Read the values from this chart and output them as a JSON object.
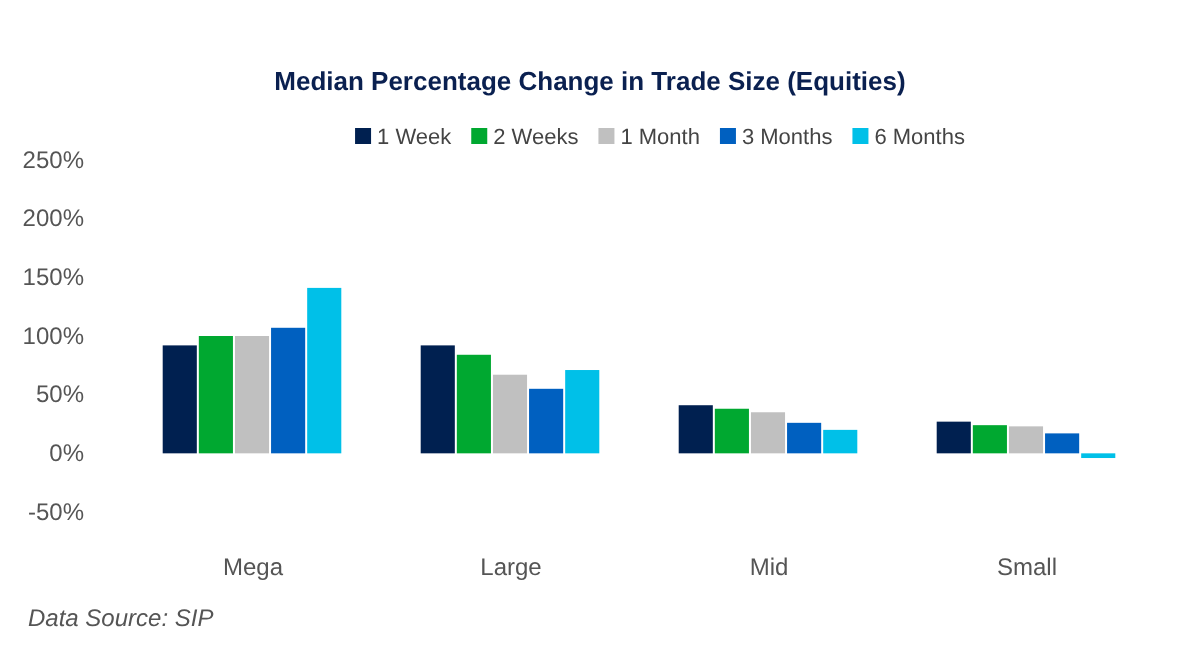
{
  "chart_data": {
    "type": "bar",
    "title": "Median Percentage Change in Trade Size (Equities)",
    "categories": [
      "Mega",
      "Large",
      "Mid",
      "Small"
    ],
    "series": [
      {
        "name": "1 Week",
        "color": "#002050",
        "values": [
          92,
          92,
          41,
          27
        ]
      },
      {
        "name": "2 Weeks",
        "color": "#00a830",
        "values": [
          100,
          84,
          38,
          24
        ]
      },
      {
        "name": "1 Month",
        "color": "#c0c0c0",
        "values": [
          100,
          67,
          35,
          23
        ]
      },
      {
        "name": "3 Months",
        "color": "#0060c0",
        "values": [
          107,
          55,
          26,
          17
        ]
      },
      {
        "name": "6 Months",
        "color": "#00c0e8",
        "values": [
          141,
          71,
          20,
          -4
        ]
      }
    ],
    "ylim": [
      -50,
      250
    ],
    "yticks": [
      {
        "value": -50,
        "label": "-50%"
      },
      {
        "value": 0,
        "label": "0%"
      },
      {
        "value": 50,
        "label": "50%"
      },
      {
        "value": 100,
        "label": "100%"
      },
      {
        "value": 150,
        "label": "150%"
      },
      {
        "value": 200,
        "label": "200%"
      },
      {
        "value": 250,
        "label": "250%"
      }
    ],
    "grid": false,
    "legend": "top",
    "annotations": [
      "Data Source: SIP"
    ]
  }
}
